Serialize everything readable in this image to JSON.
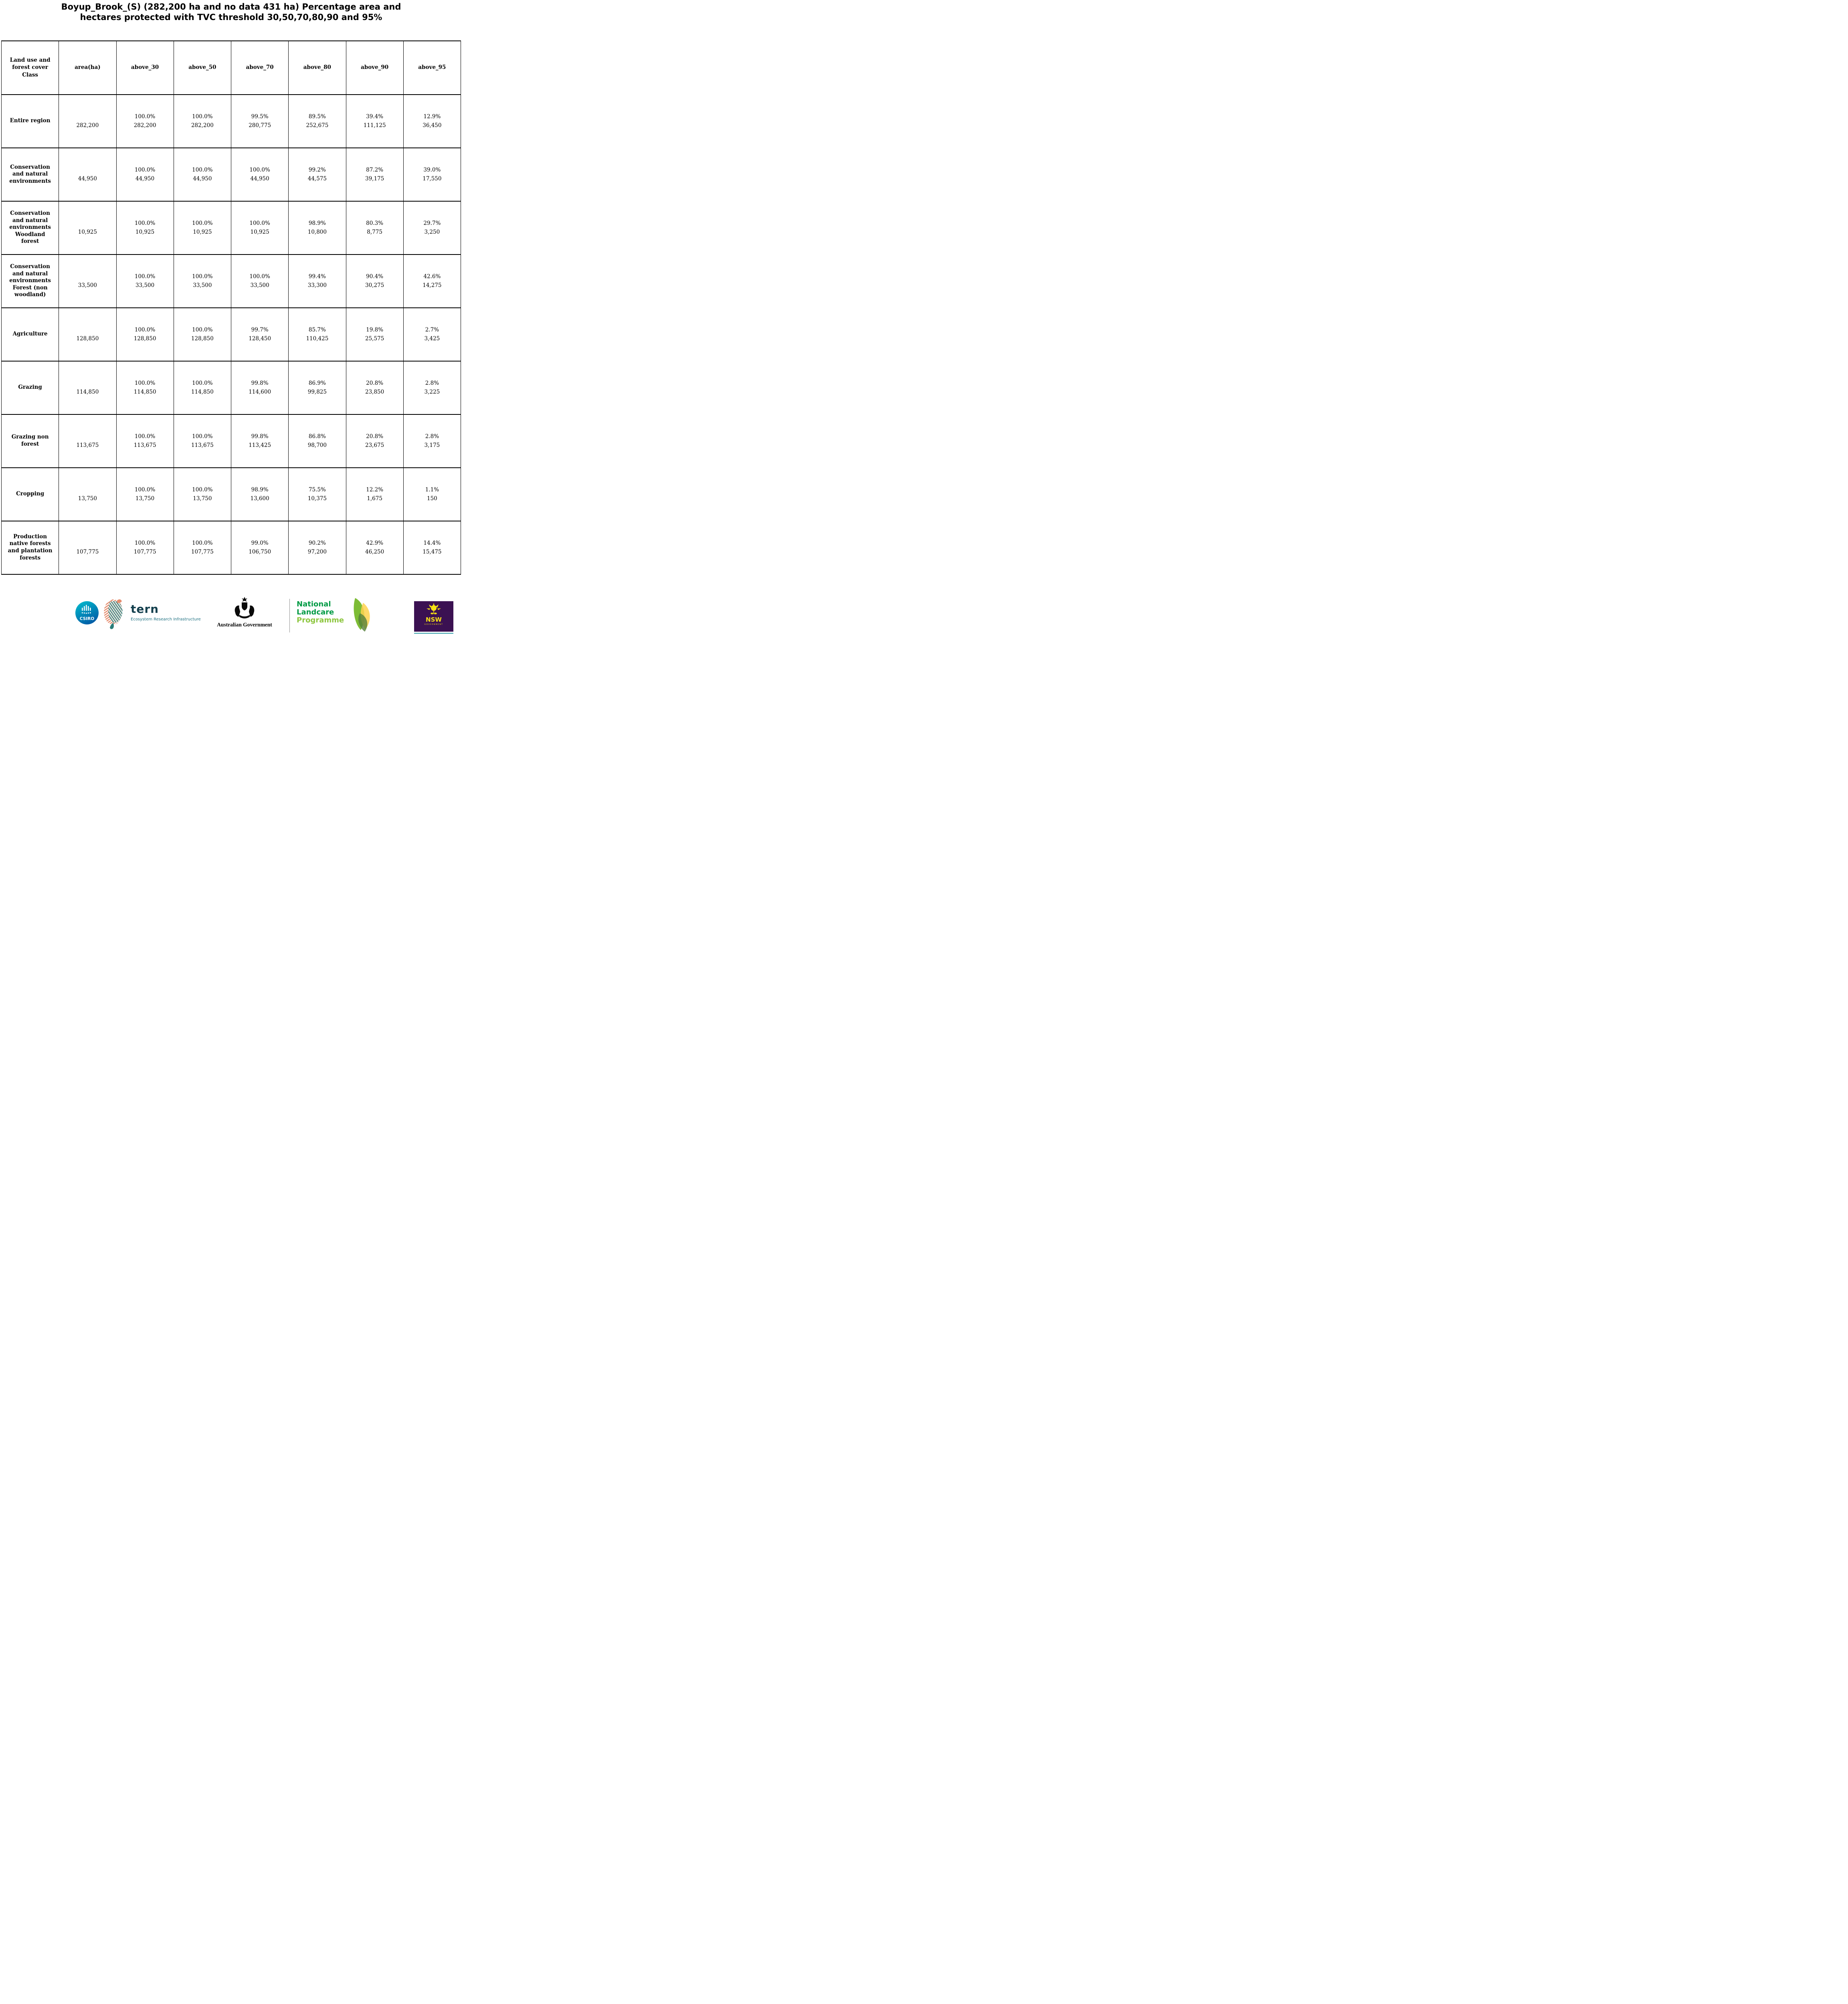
{
  "title": {
    "line1": "Boyup_Brook_(S) (282,200 ha and no data 431 ha) Percentage area and",
    "line2": "hectares protected with TVC threshold 30,50,70,80,90 and 95%"
  },
  "table": {
    "columns": [
      "Land use and forest cover Class",
      "area(ha)",
      "above_30",
      "above_50",
      "above_70",
      "above_80",
      "above_90",
      "above_95"
    ],
    "rows": [
      {
        "label": "Entire region",
        "area": "282,200",
        "values": [
          [
            "100.0%",
            "282,200"
          ],
          [
            "100.0%",
            "282,200"
          ],
          [
            "99.5%",
            "280,775"
          ],
          [
            "89.5%",
            "252,675"
          ],
          [
            "39.4%",
            "111,125"
          ],
          [
            "12.9%",
            "36,450"
          ]
        ]
      },
      {
        "label": "Conservation and natural environments",
        "area": "44,950",
        "values": [
          [
            "100.0%",
            "44,950"
          ],
          [
            "100.0%",
            "44,950"
          ],
          [
            "100.0%",
            "44,950"
          ],
          [
            "99.2%",
            "44,575"
          ],
          [
            "87.2%",
            "39,175"
          ],
          [
            "39.0%",
            "17,550"
          ]
        ]
      },
      {
        "label": "Conservation and natural environments Woodland forest",
        "area": "10,925",
        "values": [
          [
            "100.0%",
            "10,925"
          ],
          [
            "100.0%",
            "10,925"
          ],
          [
            "100.0%",
            "10,925"
          ],
          [
            "98.9%",
            "10,800"
          ],
          [
            "80.3%",
            "8,775"
          ],
          [
            "29.7%",
            "3,250"
          ]
        ]
      },
      {
        "label": "Conservation and natural environments Forest (non woodland)",
        "area": "33,500",
        "values": [
          [
            "100.0%",
            "33,500"
          ],
          [
            "100.0%",
            "33,500"
          ],
          [
            "100.0%",
            "33,500"
          ],
          [
            "99.4%",
            "33,300"
          ],
          [
            "90.4%",
            "30,275"
          ],
          [
            "42.6%",
            "14,275"
          ]
        ]
      },
      {
        "label": "Agriculture",
        "area": "128,850",
        "values": [
          [
            "100.0%",
            "128,850"
          ],
          [
            "100.0%",
            "128,850"
          ],
          [
            "99.7%",
            "128,450"
          ],
          [
            "85.7%",
            "110,425"
          ],
          [
            "19.8%",
            "25,575"
          ],
          [
            "2.7%",
            "3,425"
          ]
        ]
      },
      {
        "label": "Grazing",
        "area": "114,850",
        "values": [
          [
            "100.0%",
            "114,850"
          ],
          [
            "100.0%",
            "114,850"
          ],
          [
            "99.8%",
            "114,600"
          ],
          [
            "86.9%",
            "99,825"
          ],
          [
            "20.8%",
            "23,850"
          ],
          [
            "2.8%",
            "3,225"
          ]
        ]
      },
      {
        "label": "Grazing non forest",
        "area": "113,675",
        "values": [
          [
            "100.0%",
            "113,675"
          ],
          [
            "100.0%",
            "113,675"
          ],
          [
            "99.8%",
            "113,425"
          ],
          [
            "86.8%",
            "98,700"
          ],
          [
            "20.8%",
            "23,675"
          ],
          [
            "2.8%",
            "3,175"
          ]
        ]
      },
      {
        "label": "Cropping",
        "area": "13,750",
        "values": [
          [
            "100.0%",
            "13,750"
          ],
          [
            "100.0%",
            "13,750"
          ],
          [
            "98.9%",
            "13,600"
          ],
          [
            "75.5%",
            "10,375"
          ],
          [
            "12.2%",
            "1,675"
          ],
          [
            "1.1%",
            "150"
          ]
        ]
      },
      {
        "label": "Production native forests and plantation forests",
        "area": "107,775",
        "values": [
          [
            "100.0%",
            "107,775"
          ],
          [
            "100.0%",
            "107,775"
          ],
          [
            "99.0%",
            "106,750"
          ],
          [
            "90.2%",
            "97,200"
          ],
          [
            "42.9%",
            "46,250"
          ],
          [
            "14.4%",
            "15,475"
          ]
        ]
      }
    ]
  },
  "footer": {
    "csiro_label": "CSIRO",
    "tern_label": "tern",
    "tern_subtitle": "Ecosystem Research Infrastructure",
    "ausgov_label": "Australian Government",
    "landcare_line1": "National",
    "landcare_line2": "Landcare",
    "landcare_line3": "Programme",
    "nsw_label": "NSW",
    "nsw_sublabel": "GOVERNMENT"
  },
  "colors": {
    "border": "#000000",
    "csiro_teal": "#00c0cf",
    "csiro_blue": "#005fa8",
    "tern_dark": "#14404e",
    "tern_teal": "#1b6e7f",
    "landcare_green": "#009a44",
    "landcare_light_green": "#8dc63f",
    "leaf_green": "#76b82a",
    "leaf_yellow": "#ffd24f",
    "leaf_olive": "#55803b",
    "art_orange": "#e58d6f",
    "art_teal": "#2c7d78",
    "nsw_purple": "#3b1152",
    "nsw_yellow": "#f7e214",
    "nsw_underline_teal": "#2e9ba6"
  }
}
